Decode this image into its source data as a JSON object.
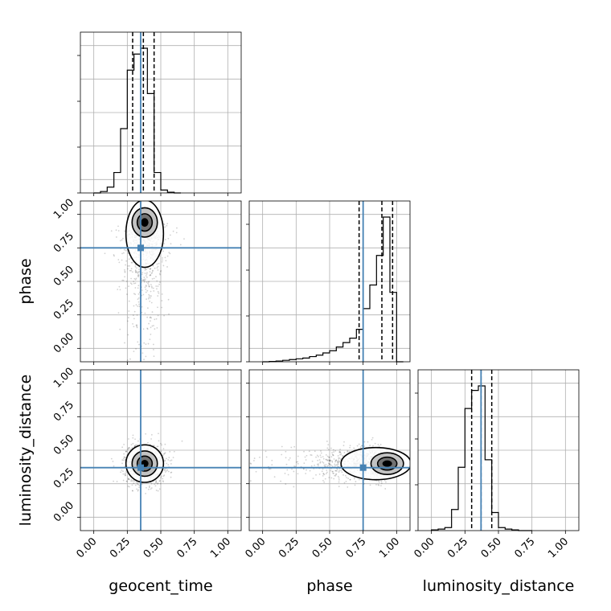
{
  "chart_data": {
    "type": "corner",
    "parameters": [
      "geocent_time",
      "phase",
      "luminosity_distance"
    ],
    "truths": {
      "geocent_time": 0.35,
      "phase": 0.75,
      "luminosity_distance": 0.37
    },
    "axis_range": [
      -0.1,
      1.1
    ],
    "tick_labels": [
      "0.00",
      "0.25",
      "0.50",
      "0.75",
      "1.00"
    ],
    "tick_values": [
      0.0,
      0.25,
      0.5,
      0.75,
      1.0
    ],
    "grid": true,
    "marginals": [
      {
        "param": "geocent_time",
        "bin_width": 0.05,
        "bin_starts": [
          0.0,
          0.05,
          0.1,
          0.15,
          0.2,
          0.25,
          0.3,
          0.35,
          0.4,
          0.45,
          0.5,
          0.55,
          0.6
        ],
        "counts": [
          0.0,
          0.01,
          0.04,
          0.14,
          0.44,
          0.84,
          0.95,
          0.99,
          0.68,
          0.14,
          0.02,
          0.005,
          0.0
        ],
        "quantiles": [
          0.29,
          0.37,
          0.45
        ]
      },
      {
        "param": "phase",
        "bin_width": 0.05,
        "bin_starts": [
          0.0,
          0.05,
          0.1,
          0.15,
          0.2,
          0.25,
          0.3,
          0.35,
          0.4,
          0.45,
          0.5,
          0.55,
          0.6,
          0.65,
          0.7,
          0.75,
          0.8,
          0.85,
          0.9,
          0.95,
          1.0
        ],
        "counts": [
          0.0,
          0.002,
          0.005,
          0.01,
          0.015,
          0.02,
          0.025,
          0.035,
          0.045,
          0.06,
          0.075,
          0.1,
          0.13,
          0.16,
          0.22,
          0.36,
          0.52,
          0.72,
          0.98,
          0.47,
          0.0
        ],
        "quantiles": [
          0.72,
          0.89,
          0.97
        ]
      },
      {
        "param": "luminosity_distance",
        "bin_width": 0.05,
        "bin_starts": [
          0.0,
          0.05,
          0.1,
          0.15,
          0.2,
          0.25,
          0.3,
          0.35,
          0.4,
          0.45,
          0.5,
          0.55,
          0.6,
          0.65,
          0.7
        ],
        "counts": [
          0.005,
          0.01,
          0.02,
          0.14,
          0.42,
          0.81,
          0.93,
          0.96,
          0.47,
          0.12,
          0.02,
          0.01,
          0.005,
          0.0,
          0.0
        ],
        "quantiles": [
          0.3,
          0.37,
          0.45
        ]
      }
    ],
    "joint_panels": [
      {
        "x": "geocent_time",
        "y": "phase",
        "peak": [
          0.38,
          0.94
        ],
        "spread": [
          0.07,
          0.09
        ]
      },
      {
        "x": "geocent_time",
        "y": "luminosity_distance",
        "peak": [
          0.38,
          0.4
        ],
        "spread": [
          0.07,
          0.07
        ]
      },
      {
        "x": "phase",
        "y": "luminosity_distance",
        "peak": [
          0.93,
          0.4
        ],
        "spread": [
          0.1,
          0.06
        ]
      }
    ],
    "truth_color": "#4682b4",
    "line_color": "#000000",
    "grid_color": "#b0b0b0"
  }
}
